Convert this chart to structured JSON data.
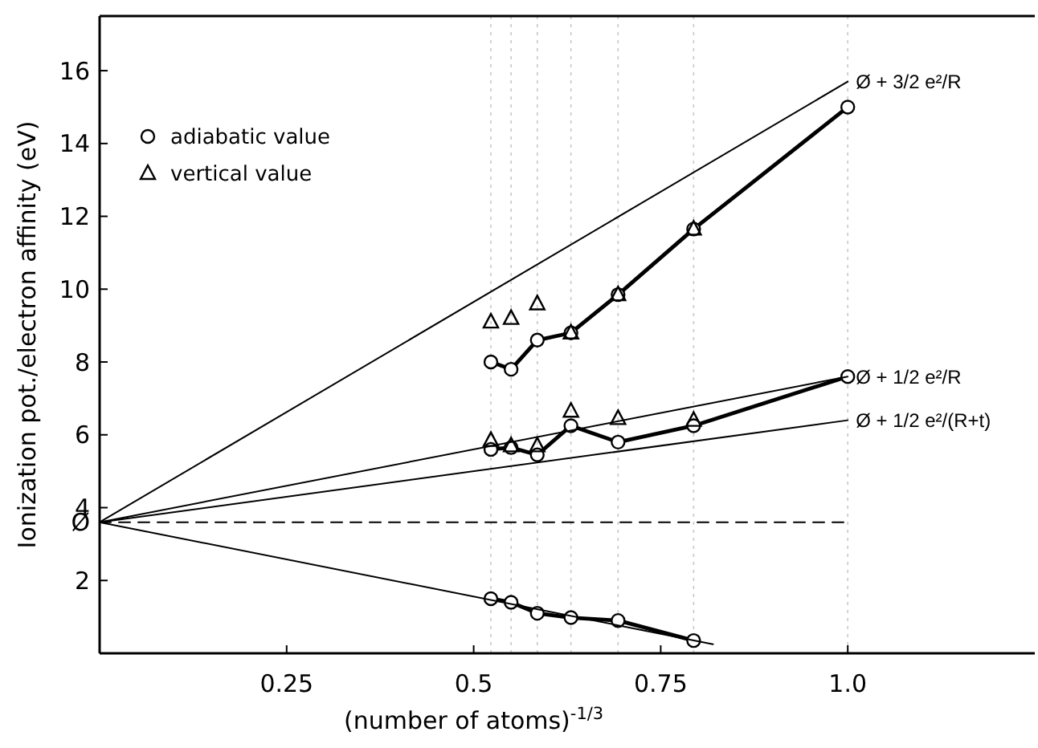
{
  "chart_data": {
    "type": "line",
    "xlabel": "(number of atoms)$^{-1/3}$",
    "ylabel": "Ionization pot./electron affinity (eV)",
    "xlim": [
      0,
      1.25
    ],
    "xticks": [
      0.25,
      0.5,
      0.75,
      {
        "value": 1,
        "label": "1.0"
      }
    ],
    "ylim": [
      0,
      17.5
    ],
    "yticks": [
      2,
      {
        "value": 3.6,
        "label": "Ø"
      },
      4,
      6,
      8,
      10,
      12,
      14,
      16
    ],
    "grid": false,
    "legend": "top left",
    "series": [
      {
        "name": "adiabatic value",
        "marker": "circle",
        "color": "#000000",
        "x": [
          0.523,
          0.55,
          0.585,
          0.63,
          0.693,
          0.794,
          1.0
        ],
        "values": [
          8.0,
          7.8,
          8.6,
          8.8,
          9.85,
          11.65,
          15.0
        ]
      },
      {
        "marker": "circle",
        "color": "#000000",
        "x": [
          0.523,
          0.55,
          0.585,
          0.63,
          0.693,
          0.794,
          1.0
        ],
        "values": [
          5.6,
          5.65,
          5.45,
          6.25,
          5.8,
          6.25,
          7.6
        ]
      },
      {
        "marker": "circle",
        "color": "#000000",
        "x": [
          0.523,
          0.55,
          0.585,
          0.63,
          0.693,
          0.794
        ],
        "values": [
          1.5,
          1.4,
          1.1,
          0.98,
          0.9,
          0.35
        ]
      },
      {
        "name": "vertical value",
        "type": "scatter",
        "marker": "triangle",
        "color": "#000000",
        "x": [
          0.523,
          0.55,
          0.585,
          0.63,
          0.693,
          0.794,
          0.523,
          0.55,
          0.585,
          0.63,
          0.693,
          0.794
        ],
        "values": [
          9.1,
          9.2,
          9.6,
          8.8,
          9.85,
          11.65,
          5.85,
          5.7,
          5.7,
          6.65,
          6.45,
          6.4
        ]
      },
      {
        "name": "Ø + 3/2 e²/R",
        "type": "line",
        "marker": "none",
        "color": "#000000",
        "x": [
          0,
          1.0
        ],
        "values": [
          3.6,
          15.7
        ]
      },
      {
        "name": "Ø + 1/2 e²/R",
        "type": "line",
        "marker": "none",
        "color": "#000000",
        "x": [
          0,
          1.0
        ],
        "values": [
          3.6,
          7.6
        ]
      },
      {
        "name": "Ø + 1/2 e²/(R+t)",
        "type": "line",
        "marker": "none",
        "color": "#000000",
        "x": [
          0,
          1.0
        ],
        "values": [
          3.6,
          6.4
        ]
      },
      {
        "type": "line",
        "marker": "none",
        "color": "#000000",
        "x": [
          0,
          0.82
        ],
        "values": [
          3.6,
          0.25
        ]
      },
      {
        "type": "line",
        "marker": "none",
        "line_style": "dashed",
        "color": "#000000",
        "x": [
          0,
          1.0
        ],
        "values": [
          3.6,
          3.6
        ]
      }
    ],
    "ref_lines": [
      {
        "axis": "x",
        "value": 0.523,
        "color": "#c8c8c8",
        "line_style": "dotted"
      },
      {
        "axis": "x",
        "value": 0.55,
        "color": "#c8c8c8",
        "line_style": "dotted"
      },
      {
        "axis": "x",
        "value": 0.585,
        "color": "#c8c8c8",
        "line_style": "dotted"
      },
      {
        "axis": "x",
        "value": 0.63,
        "color": "#c8c8c8",
        "line_style": "dotted"
      },
      {
        "axis": "x",
        "value": 0.693,
        "color": "#c8c8c8",
        "line_style": "dotted"
      },
      {
        "axis": "x",
        "value": 0.794,
        "color": "#c8c8c8",
        "line_style": "dotted"
      },
      {
        "axis": "x",
        "value": 1.0,
        "color": "#c8c8c8",
        "line_style": "dotted"
      }
    ]
  }
}
